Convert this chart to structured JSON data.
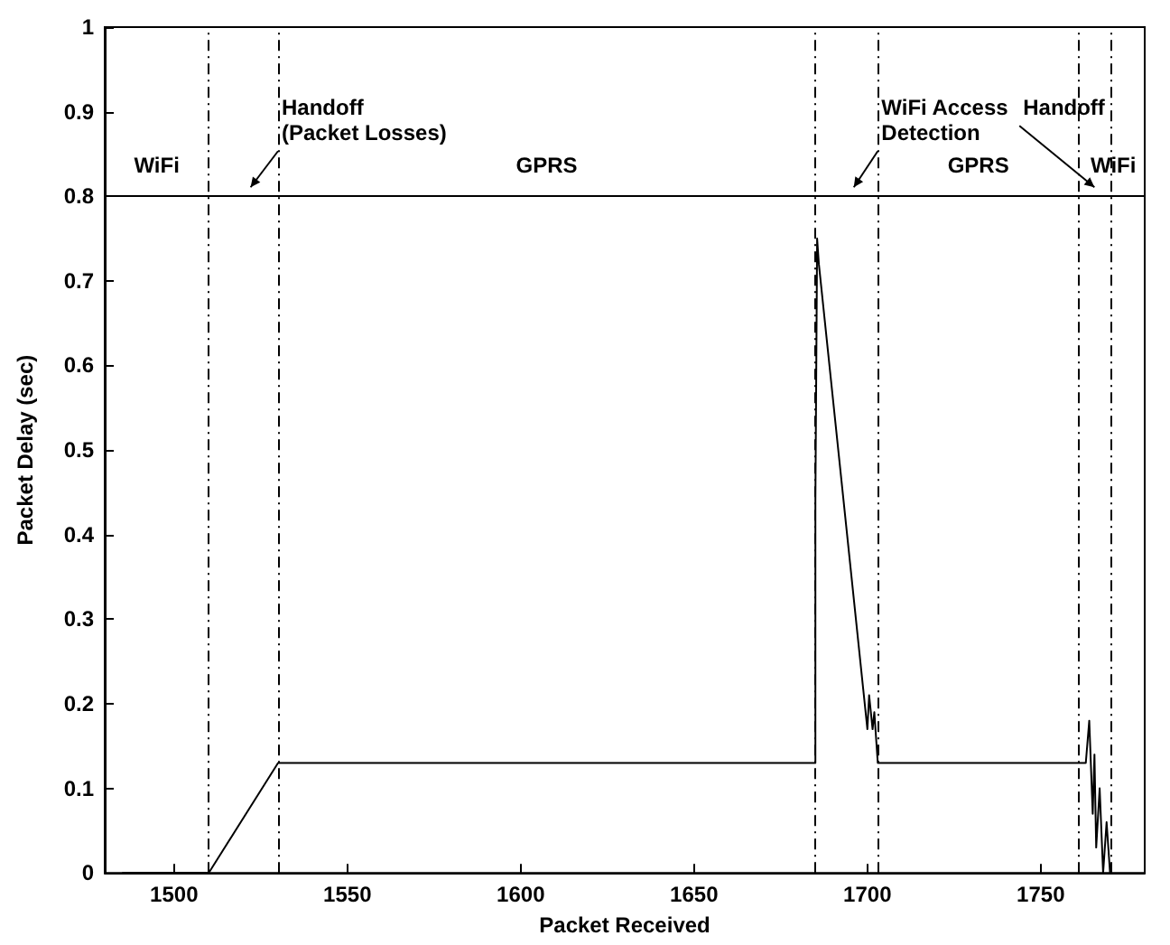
{
  "chart_data": {
    "type": "line",
    "xlabel": "Packet Received",
    "ylabel": "Packet Delay (sec)",
    "xlim": [
      1480,
      1780
    ],
    "xticks": [
      1500,
      1550,
      1600,
      1650,
      1700,
      1750
    ],
    "ylim": [
      0,
      1
    ],
    "yticks": [
      0,
      0.1,
      0.2,
      0.3,
      0.4,
      0.5,
      0.6,
      0.7,
      0.8,
      0.9,
      1
    ],
    "grid": false,
    "marker": "none",
    "line_style": "solid",
    "series": [
      {
        "color": "#000000",
        "x": [
          1485,
          1510,
          1530,
          1685,
          1685,
          1685.5,
          1686,
          1700,
          1700.5,
          1701.5,
          1702,
          1703,
          1763,
          1764,
          1765,
          1765.5,
          1766,
          1767,
          1768,
          1769,
          1770
        ],
        "values": [
          0,
          0,
          0.13,
          0.13,
          0.44,
          0.75,
          0.72,
          0.17,
          0.21,
          0.17,
          0.19,
          0.13,
          0.13,
          0.18,
          0.07,
          0.14,
          0.03,
          0.1,
          0,
          0.06,
          0
        ]
      }
    ],
    "ref_lines": [
      {
        "axis": "y",
        "value": 0.8,
        "color": "#000000",
        "line_style": "solid"
      },
      {
        "axis": "x",
        "value": 1510,
        "color": "#000000",
        "line_style": "dashed"
      },
      {
        "axis": "x",
        "value": 1530,
        "color": "#000000",
        "line_style": "dashed"
      },
      {
        "axis": "x",
        "value": 1685,
        "color": "#000000",
        "line_style": "dashed"
      },
      {
        "axis": "x",
        "value": 1703,
        "color": "#000000",
        "line_style": "dashed"
      },
      {
        "axis": "x",
        "value": 1761,
        "color": "#000000",
        "line_style": "dashed"
      },
      {
        "axis": "x",
        "value": 1770,
        "color": "#000000",
        "line_style": "dashed"
      }
    ],
    "annotations": [
      "WiFi",
      "Handoff\n(Packet Losses)",
      "GPRS",
      "WiFi Access\nDetection",
      "GPRS",
      "Handoff",
      "WiFi"
    ]
  }
}
